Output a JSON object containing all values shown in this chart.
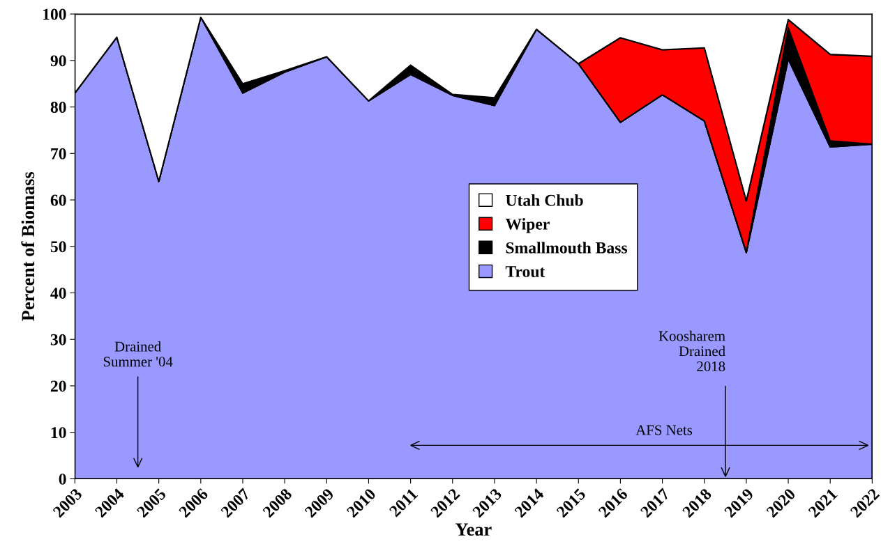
{
  "chart_data": {
    "type": "area",
    "stacked": true,
    "xlabel": "Year",
    "ylabel": "Percent of Biomass",
    "x": [
      2003,
      2004,
      2005,
      2006,
      2007,
      2008,
      2009,
      2010,
      2011,
      2012,
      2013,
      2014,
      2015,
      2016,
      2017,
      2018,
      2019,
      2020,
      2021,
      2022
    ],
    "xlim": [
      2003,
      2022
    ],
    "xticks": [
      2003,
      2004,
      2005,
      2006,
      2007,
      2008,
      2009,
      2010,
      2011,
      2012,
      2013,
      2014,
      2015,
      2016,
      2017,
      2018,
      2019,
      2020,
      2021,
      2022
    ],
    "ylim": [
      0,
      100
    ],
    "yticks": [
      0,
      10,
      20,
      30,
      40,
      50,
      60,
      70,
      80,
      90,
      100
    ],
    "series": [
      {
        "name": "Trout",
        "color": "#9999ff",
        "values": [
          83,
          95,
          64,
          99.3,
          83,
          87.5,
          90.8,
          81.3,
          87,
          82.5,
          80.3,
          96.7,
          89.3,
          76.7,
          82.6,
          77,
          48.7,
          90.3,
          71.4,
          72
        ]
      },
      {
        "name": "Smallmouth Bass",
        "color": "#000000",
        "values": [
          0,
          0,
          0,
          0,
          2,
          0.3,
          0,
          0,
          2,
          0.2,
          1.7,
          0,
          0,
          0,
          0,
          0,
          0,
          6.7,
          1.3,
          0
        ]
      },
      {
        "name": "Wiper",
        "color": "#ff0000",
        "values": [
          null,
          null,
          null,
          null,
          null,
          null,
          null,
          null,
          null,
          null,
          null,
          null,
          0,
          18.2,
          9.7,
          15.7,
          11.1,
          1.8,
          18.6,
          18.9
        ]
      },
      {
        "name": "Utah Chub",
        "color": "#ffffff",
        "values": [
          17,
          5,
          36,
          0.7,
          15,
          12.2,
          9.2,
          18.7,
          11,
          17.3,
          18,
          3.3,
          10.7,
          5.1,
          7.7,
          7.3,
          40.2,
          1.2,
          8.7,
          9.1
        ]
      }
    ],
    "annotations": [
      "Drained\nSummer '04",
      "Koosharem\nDrained\n2018",
      "AFS Nets"
    ],
    "legend": "center",
    "grid": false
  }
}
